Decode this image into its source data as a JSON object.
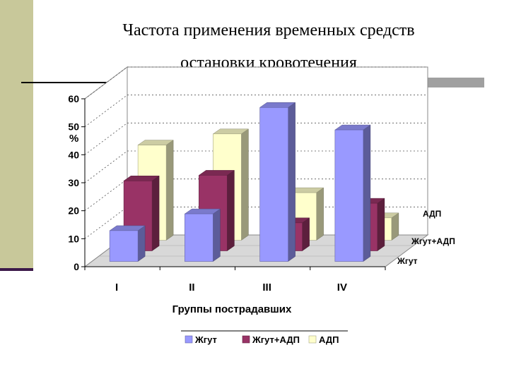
{
  "slide": {
    "title_line1": "Частота применения временных средств",
    "title_line2": "остановки кровотечения"
  },
  "colors": {
    "zhgut": "#9999ff",
    "zhgut_adp": "#993366",
    "adp": "#ffffcc",
    "side_bar": "#c8c89a",
    "wall": "#ffffff",
    "floor": "#d8d8d8"
  },
  "chart_data": {
    "type": "bar",
    "chart_style": "3d-clustered-depth",
    "title": "",
    "xlabel": "Группы пострадавших",
    "ylabel": "%",
    "ylim": [
      0,
      60
    ],
    "yticks": [
      "0",
      "10",
      "20",
      "30",
      "40",
      "50",
      "60"
    ],
    "categories": [
      "I",
      "II",
      "III",
      "IV"
    ],
    "series": [
      {
        "name": "Жгут",
        "values": [
          11,
          17,
          55,
          47
        ]
      },
      {
        "name": "Жгут+АДП",
        "values": [
          25,
          27,
          10,
          17
        ]
      },
      {
        "name": "АДП",
        "values": [
          34,
          38,
          17,
          8
        ]
      }
    ],
    "depth_labels": [
      "АДП",
      "Жгут+АДП",
      "Жгут"
    ],
    "legend_position": "bottom",
    "grid": true
  }
}
